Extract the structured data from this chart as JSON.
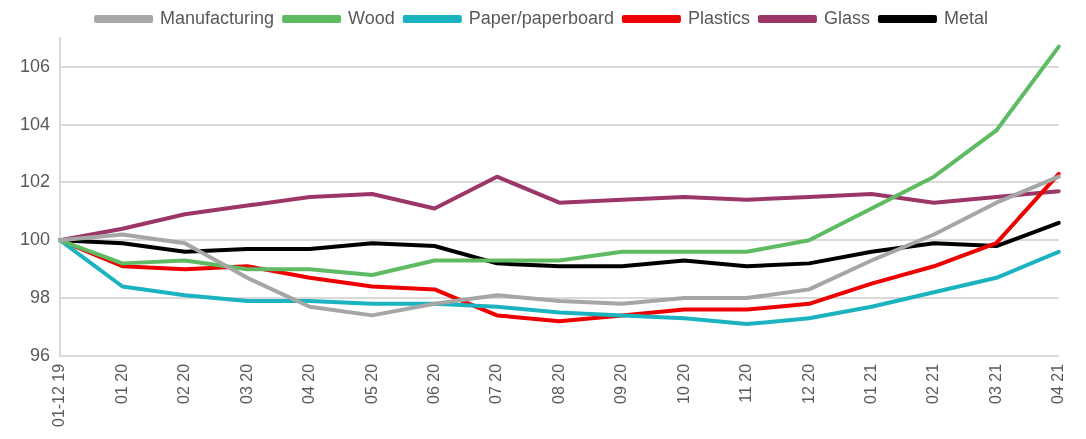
{
  "chart_data": {
    "type": "line",
    "categories": [
      "01-12 19",
      "01 20",
      "02 20",
      "03 20",
      "04 20",
      "05 20",
      "06 20",
      "07 20",
      "08 20",
      "09 20",
      "10 20",
      "11 20",
      "12 20",
      "01 21",
      "02 21",
      "03 21",
      "04 21"
    ],
    "series": [
      {
        "name": "Manufacturing",
        "color": "#a6a6a6",
        "values": [
          100,
          100.2,
          99.9,
          98.7,
          97.7,
          97.4,
          97.8,
          98.1,
          97.9,
          97.8,
          98.0,
          98.0,
          98.3,
          99.3,
          100.2,
          101.3,
          102.2
        ]
      },
      {
        "name": "Wood",
        "color": "#5fbb63",
        "values": [
          100,
          99.2,
          99.3,
          99.0,
          99.0,
          98.8,
          99.3,
          99.3,
          99.3,
          99.6,
          99.6,
          99.6,
          100.0,
          101.1,
          102.2,
          103.8,
          106.7
        ]
      },
      {
        "name": "Paper/paperboard",
        "color": "#1ab3bf",
        "values": [
          100,
          98.4,
          98.1,
          97.9,
          97.9,
          97.8,
          97.8,
          97.7,
          97.5,
          97.4,
          97.3,
          97.1,
          97.3,
          97.7,
          98.2,
          98.7,
          99.6
        ]
      },
      {
        "name": "Plastics",
        "color": "#ee0000",
        "values": [
          100,
          99.1,
          99.0,
          99.1,
          98.7,
          98.4,
          98.3,
          97.4,
          97.2,
          97.4,
          97.6,
          97.6,
          97.8,
          98.5,
          99.1,
          99.9,
          102.3
        ]
      },
      {
        "name": "Glass",
        "color": "#9c3668",
        "values": [
          100,
          100.4,
          100.9,
          101.2,
          101.5,
          101.6,
          101.1,
          102.2,
          101.3,
          101.4,
          101.5,
          101.4,
          101.5,
          101.6,
          101.3,
          101.5,
          101.7
        ]
      },
      {
        "name": "Metal",
        "color": "#000000",
        "values": [
          100,
          99.9,
          99.6,
          99.7,
          99.7,
          99.9,
          99.8,
          99.2,
          99.1,
          99.1,
          99.3,
          99.1,
          99.2,
          99.6,
          99.9,
          99.8,
          100.6
        ]
      }
    ],
    "ylim": [
      96,
      107
    ],
    "yticks": [
      96,
      98,
      100,
      102,
      104,
      106
    ],
    "grid": "y",
    "legend": "top",
    "marker": "none",
    "line_style": "solid"
  }
}
